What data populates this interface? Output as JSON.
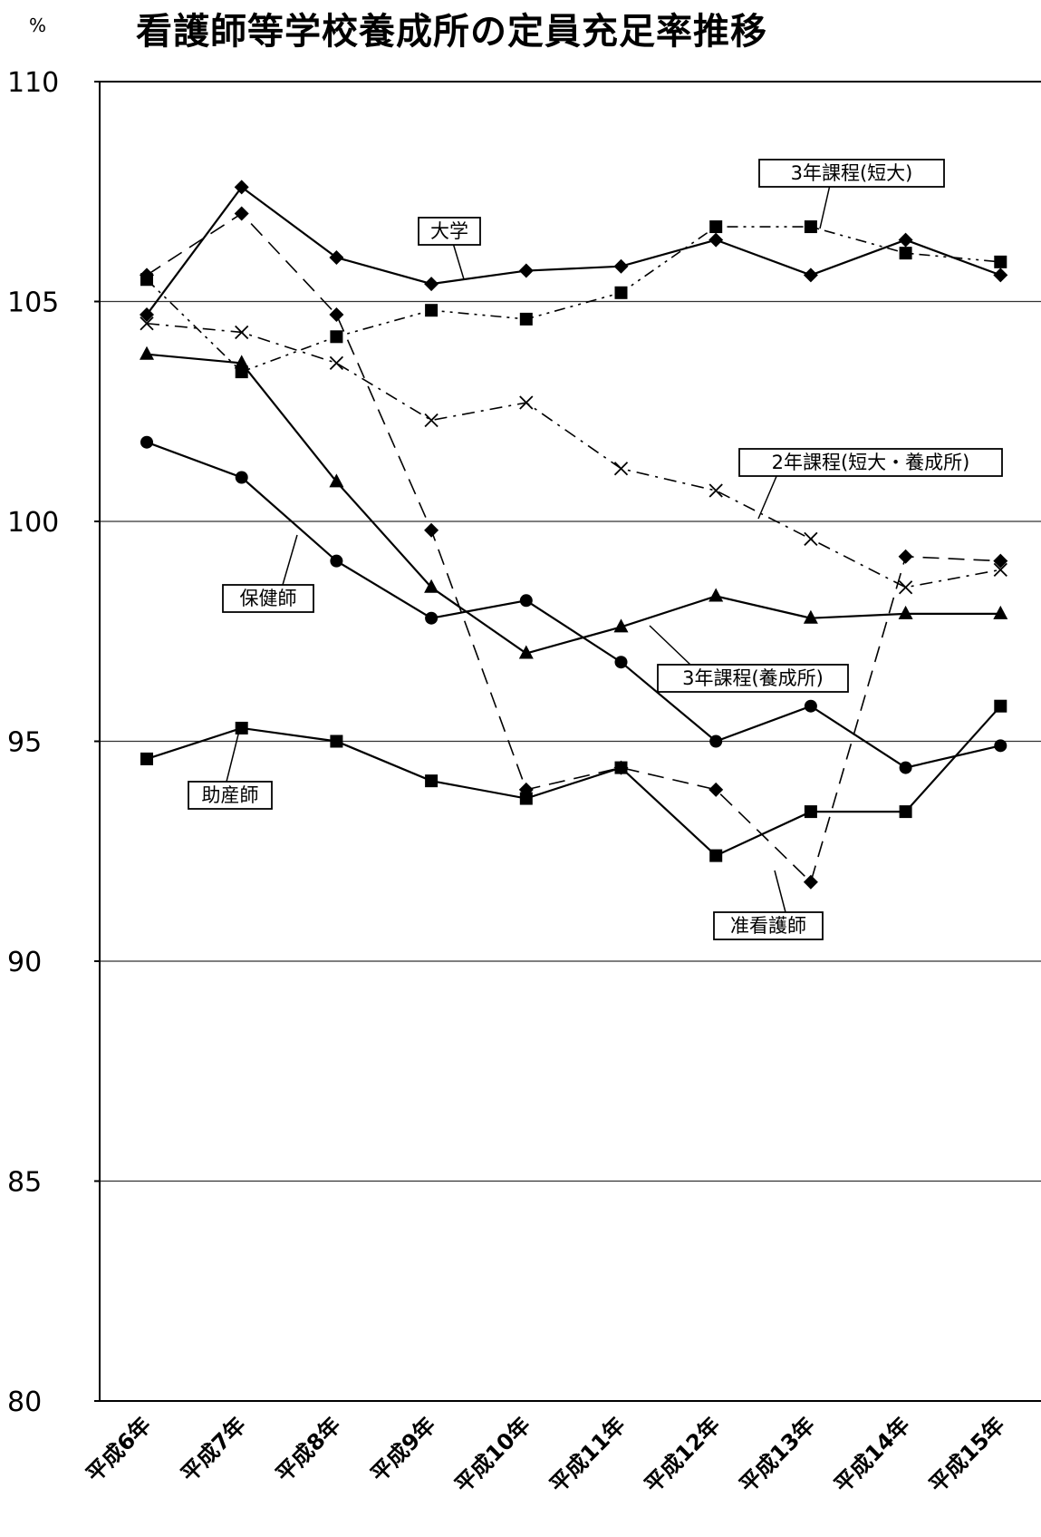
{
  "chart_data": {
    "type": "line",
    "title": "看護師等学校養成所の定員充足率推移",
    "ylabel": "%",
    "xlabel": "",
    "ylim": [
      80,
      110
    ],
    "yticks": [
      110,
      105,
      100,
      95,
      90,
      85,
      80
    ],
    "grid": true,
    "categories": [
      "平成6年",
      "平成7年",
      "平成8年",
      "平成9年",
      "平成10年",
      "平成11年",
      "平成12年",
      "平成13年",
      "平成14年",
      "平成15年"
    ],
    "series": [
      {
        "name": "大学",
        "marker": "diamond",
        "style": "solid",
        "values": [
          104.7,
          107.6,
          106.0,
          105.4,
          105.7,
          105.8,
          106.4,
          105.6,
          106.4,
          105.6
        ]
      },
      {
        "name": "3年課程(短大)",
        "marker": "square",
        "style": "dashdotdot",
        "values": [
          105.5,
          103.4,
          104.2,
          104.8,
          104.6,
          105.2,
          106.7,
          106.7,
          106.1,
          105.9
        ]
      },
      {
        "name": "2年課程(短大・養成所)",
        "marker": "cross",
        "style": "dashdot",
        "values": [
          104.5,
          104.3,
          103.6,
          102.3,
          102.7,
          101.2,
          100.7,
          99.6,
          98.5,
          98.9
        ]
      },
      {
        "name": "3年課程(養成所)",
        "marker": "triangle",
        "style": "solid",
        "values": [
          103.8,
          103.6,
          100.9,
          98.5,
          97.0,
          97.6,
          98.3,
          97.8,
          97.9,
          97.9
        ]
      },
      {
        "name": "保健師",
        "marker": "circle",
        "style": "solid",
        "values": [
          101.8,
          101.0,
          99.1,
          97.8,
          98.2,
          96.8,
          95.0,
          95.8,
          94.4,
          94.9
        ]
      },
      {
        "name": "助産師",
        "marker": "square",
        "style": "solid",
        "values": [
          94.6,
          95.3,
          95.0,
          94.1,
          93.7,
          94.4,
          92.4,
          93.4,
          93.4,
          95.8
        ]
      },
      {
        "name": "准看護師",
        "marker": "diamond",
        "style": "dashed",
        "values": [
          105.6,
          107.0,
          104.7,
          99.8,
          93.9,
          94.4,
          93.9,
          91.8,
          99.2,
          99.1
        ]
      }
    ]
  }
}
